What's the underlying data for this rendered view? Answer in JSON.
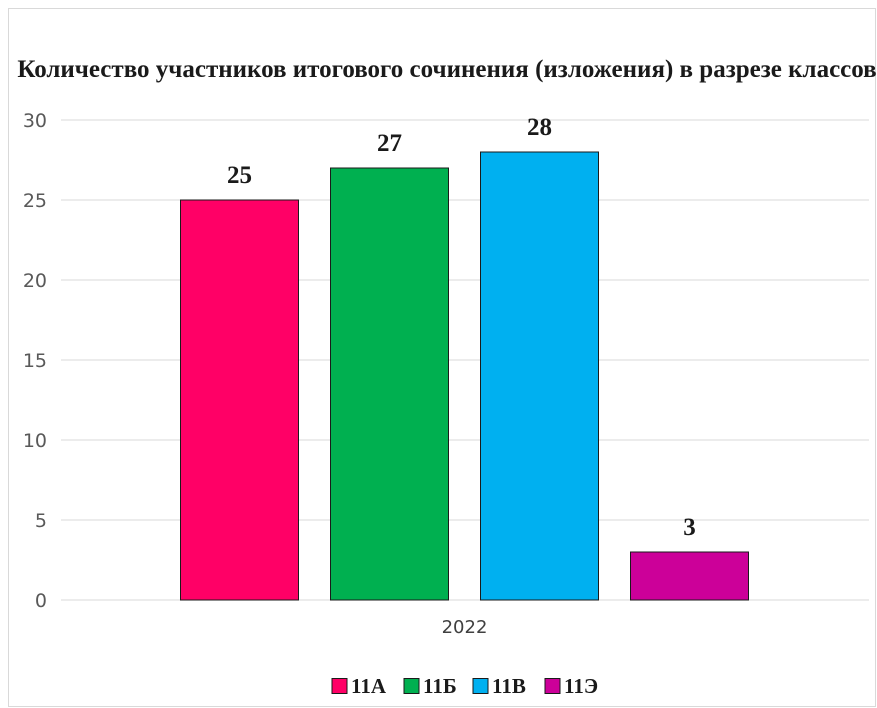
{
  "chart_data": {
    "type": "bar",
    "title": "Количество участников итогового сочинения (изложения) в разрезе классов",
    "categories": [
      "2022"
    ],
    "series": [
      {
        "name": "11А",
        "values": [
          25
        ],
        "color": "#ff0066"
      },
      {
        "name": "11Б",
        "values": [
          27
        ],
        "color": "#00b050"
      },
      {
        "name": "11В",
        "values": [
          28
        ],
        "color": "#00b0f0"
      },
      {
        "name": "11Э",
        "values": [
          3
        ],
        "color": "#cc0099"
      }
    ],
    "xlabel": "",
    "ylabel": "",
    "ylim": [
      0,
      30
    ],
    "yticks": [
      0,
      5,
      10,
      15,
      20,
      25,
      30
    ],
    "grid": true,
    "legend": "bottom",
    "data_labels": true
  }
}
